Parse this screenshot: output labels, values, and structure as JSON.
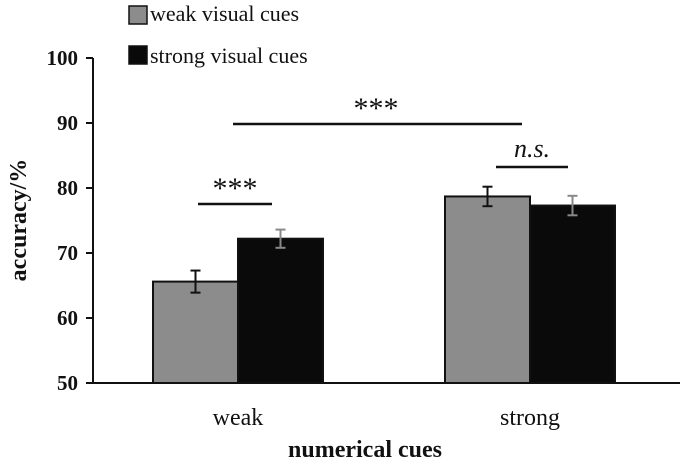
{
  "chart_data": {
    "type": "bar",
    "categories": [
      "weak",
      "strong"
    ],
    "series": [
      {
        "name": "weak visual cues",
        "values": [
          65.6,
          78.7
        ],
        "errors": [
          1.7,
          1.5
        ],
        "color": "#8c8c8c"
      },
      {
        "name": "strong visual cues",
        "values": [
          72.2,
          77.3
        ],
        "errors": [
          1.4,
          1.5
        ],
        "color": "#0a0a0a"
      }
    ],
    "xlabel": "numerical cues",
    "ylabel": "accuracy/%",
    "ylim": [
      50,
      100
    ],
    "yticks": [
      50,
      60,
      70,
      80,
      90,
      100
    ],
    "legend_position": "top-left",
    "grid": false,
    "annotations": [
      {
        "label": "***",
        "between": "weak vs strong numerical cues"
      },
      {
        "label": "***",
        "between": "weak numerical cues: weak vs strong visual cues"
      },
      {
        "label": "n.s.",
        "between": "strong numerical cues: weak vs strong visual cues"
      }
    ]
  }
}
